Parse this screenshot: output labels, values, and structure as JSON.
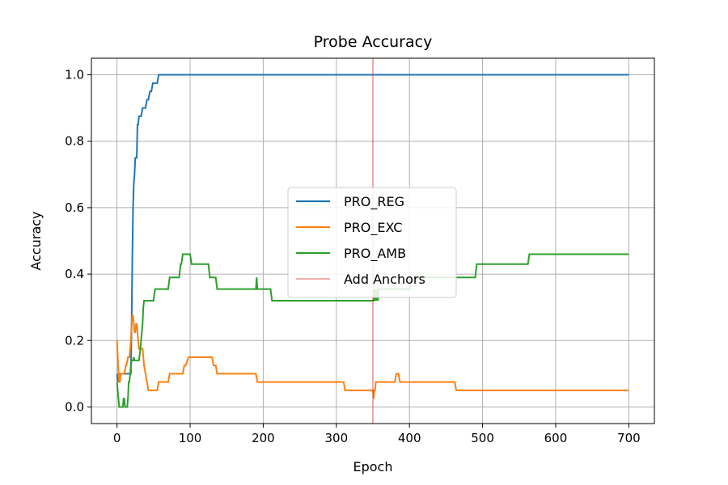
{
  "chart_data": {
    "type": "line",
    "title": "Probe Accuracy",
    "xlabel": "Epoch",
    "ylabel": "Accuracy",
    "xlim": [
      -35,
      735
    ],
    "ylim": [
      -0.05,
      1.05
    ],
    "xticks": [
      0,
      100,
      200,
      300,
      400,
      500,
      600,
      700
    ],
    "xtick_labels": [
      "0",
      "100",
      "200",
      "300",
      "400",
      "500",
      "600",
      "700"
    ],
    "yticks": [
      0.0,
      0.2,
      0.4,
      0.6,
      0.8,
      1.0
    ],
    "ytick_labels": [
      "0.0",
      "0.2",
      "0.4",
      "0.6",
      "0.8",
      "1.0"
    ],
    "grid": true,
    "legend_position": "center",
    "series": [
      {
        "name": "PRO_REG",
        "color": "#1f77b4",
        "x": [
          0,
          1,
          2,
          19,
          20,
          21,
          22,
          23,
          24,
          25,
          26,
          27,
          28,
          29,
          30,
          31,
          33,
          35,
          37,
          39,
          41,
          43,
          45,
          47,
          49,
          51,
          53,
          55,
          57,
          59,
          61,
          700
        ],
        "y": [
          0.1,
          0.075,
          0.1,
          0.1,
          0.25,
          0.45,
          0.6,
          0.675,
          0.7,
          0.75,
          0.75,
          0.75,
          0.85,
          0.85,
          0.875,
          0.875,
          0.875,
          0.9,
          0.9,
          0.9,
          0.925,
          0.925,
          0.95,
          0.95,
          0.975,
          0.975,
          0.975,
          0.975,
          1.0,
          1.0,
          1.0,
          1.0
        ]
      },
      {
        "name": "PRO_EXC",
        "color": "#ff7f0e",
        "x": [
          0,
          1,
          2,
          3,
          4,
          5,
          10,
          12,
          13,
          15,
          17,
          18,
          19,
          20,
          21,
          22,
          23,
          24,
          25,
          26,
          27,
          28,
          29,
          30,
          31,
          33,
          35,
          37,
          39,
          41,
          43,
          45,
          47,
          55,
          57,
          60,
          62,
          70,
          72,
          80,
          85,
          90,
          92,
          94,
          98,
          100,
          102,
          130,
          132,
          135,
          137,
          140,
          145,
          190,
          192,
          310,
          312,
          350,
          351,
          352,
          353,
          354,
          380,
          382,
          385,
          387,
          460,
          462,
          464,
          700
        ],
        "y": [
          0.2,
          0.15,
          0.1,
          0.075,
          0.075,
          0.1,
          0.1,
          0.125,
          0.125,
          0.15,
          0.15,
          0.175,
          0.2,
          0.25,
          0.275,
          0.275,
          0.25,
          0.225,
          0.225,
          0.25,
          0.25,
          0.225,
          0.2,
          0.175,
          0.175,
          0.175,
          0.175,
          0.125,
          0.1,
          0.075,
          0.05,
          0.05,
          0.05,
          0.05,
          0.075,
          0.075,
          0.075,
          0.075,
          0.1,
          0.1,
          0.1,
          0.1,
          0.125,
          0.125,
          0.15,
          0.15,
          0.15,
          0.15,
          0.125,
          0.125,
          0.1,
          0.1,
          0.1,
          0.1,
          0.075,
          0.075,
          0.05,
          0.05,
          0.025,
          0.05,
          0.05,
          0.075,
          0.075,
          0.1,
          0.1,
          0.075,
          0.075,
          0.075,
          0.05,
          0.05
        ]
      },
      {
        "name": "PRO_AMB",
        "color": "#2ca02c",
        "x": [
          0,
          1,
          2,
          3,
          4,
          8,
          9,
          10,
          11,
          14,
          15,
          16,
          17,
          18,
          19,
          20,
          21,
          22,
          23,
          24,
          30,
          32,
          35,
          36,
          37,
          38,
          40,
          50,
          52,
          60,
          62,
          70,
          72,
          80,
          85,
          87,
          88,
          90,
          100,
          102,
          110,
          125,
          127,
          128,
          130,
          135,
          137,
          140,
          190,
          191,
          192,
          193,
          200,
          210,
          212,
          300,
          310,
          350,
          351,
          352,
          353,
          354,
          355,
          356,
          357,
          358,
          359,
          360,
          400,
          402,
          430,
          432,
          490,
          492,
          560,
          562,
          564,
          700
        ],
        "y": [
          0.075,
          0.05,
          0.025,
          0.0,
          0.0,
          0.0,
          0.025,
          0.025,
          0.0,
          0.0,
          0.025,
          0.075,
          0.075,
          0.1,
          0.125,
          0.14,
          0.14,
          0.14,
          0.15,
          0.14,
          0.14,
          0.175,
          0.25,
          0.3,
          0.32,
          0.32,
          0.32,
          0.32,
          0.355,
          0.355,
          0.355,
          0.355,
          0.39,
          0.39,
          0.39,
          0.43,
          0.43,
          0.46,
          0.46,
          0.43,
          0.43,
          0.43,
          0.39,
          0.39,
          0.39,
          0.39,
          0.355,
          0.355,
          0.355,
          0.39,
          0.355,
          0.355,
          0.355,
          0.355,
          0.32,
          0.32,
          0.32,
          0.32,
          0.32,
          0.355,
          0.32,
          0.355,
          0.32,
          0.355,
          0.32,
          0.355,
          0.355,
          0.355,
          0.355,
          0.39,
          0.39,
          0.39,
          0.39,
          0.43,
          0.43,
          0.43,
          0.46,
          0.46
        ]
      }
    ],
    "annotations": [
      {
        "type": "vline",
        "x": 350,
        "color": "#d62728",
        "label": "Add Anchors"
      }
    ]
  }
}
